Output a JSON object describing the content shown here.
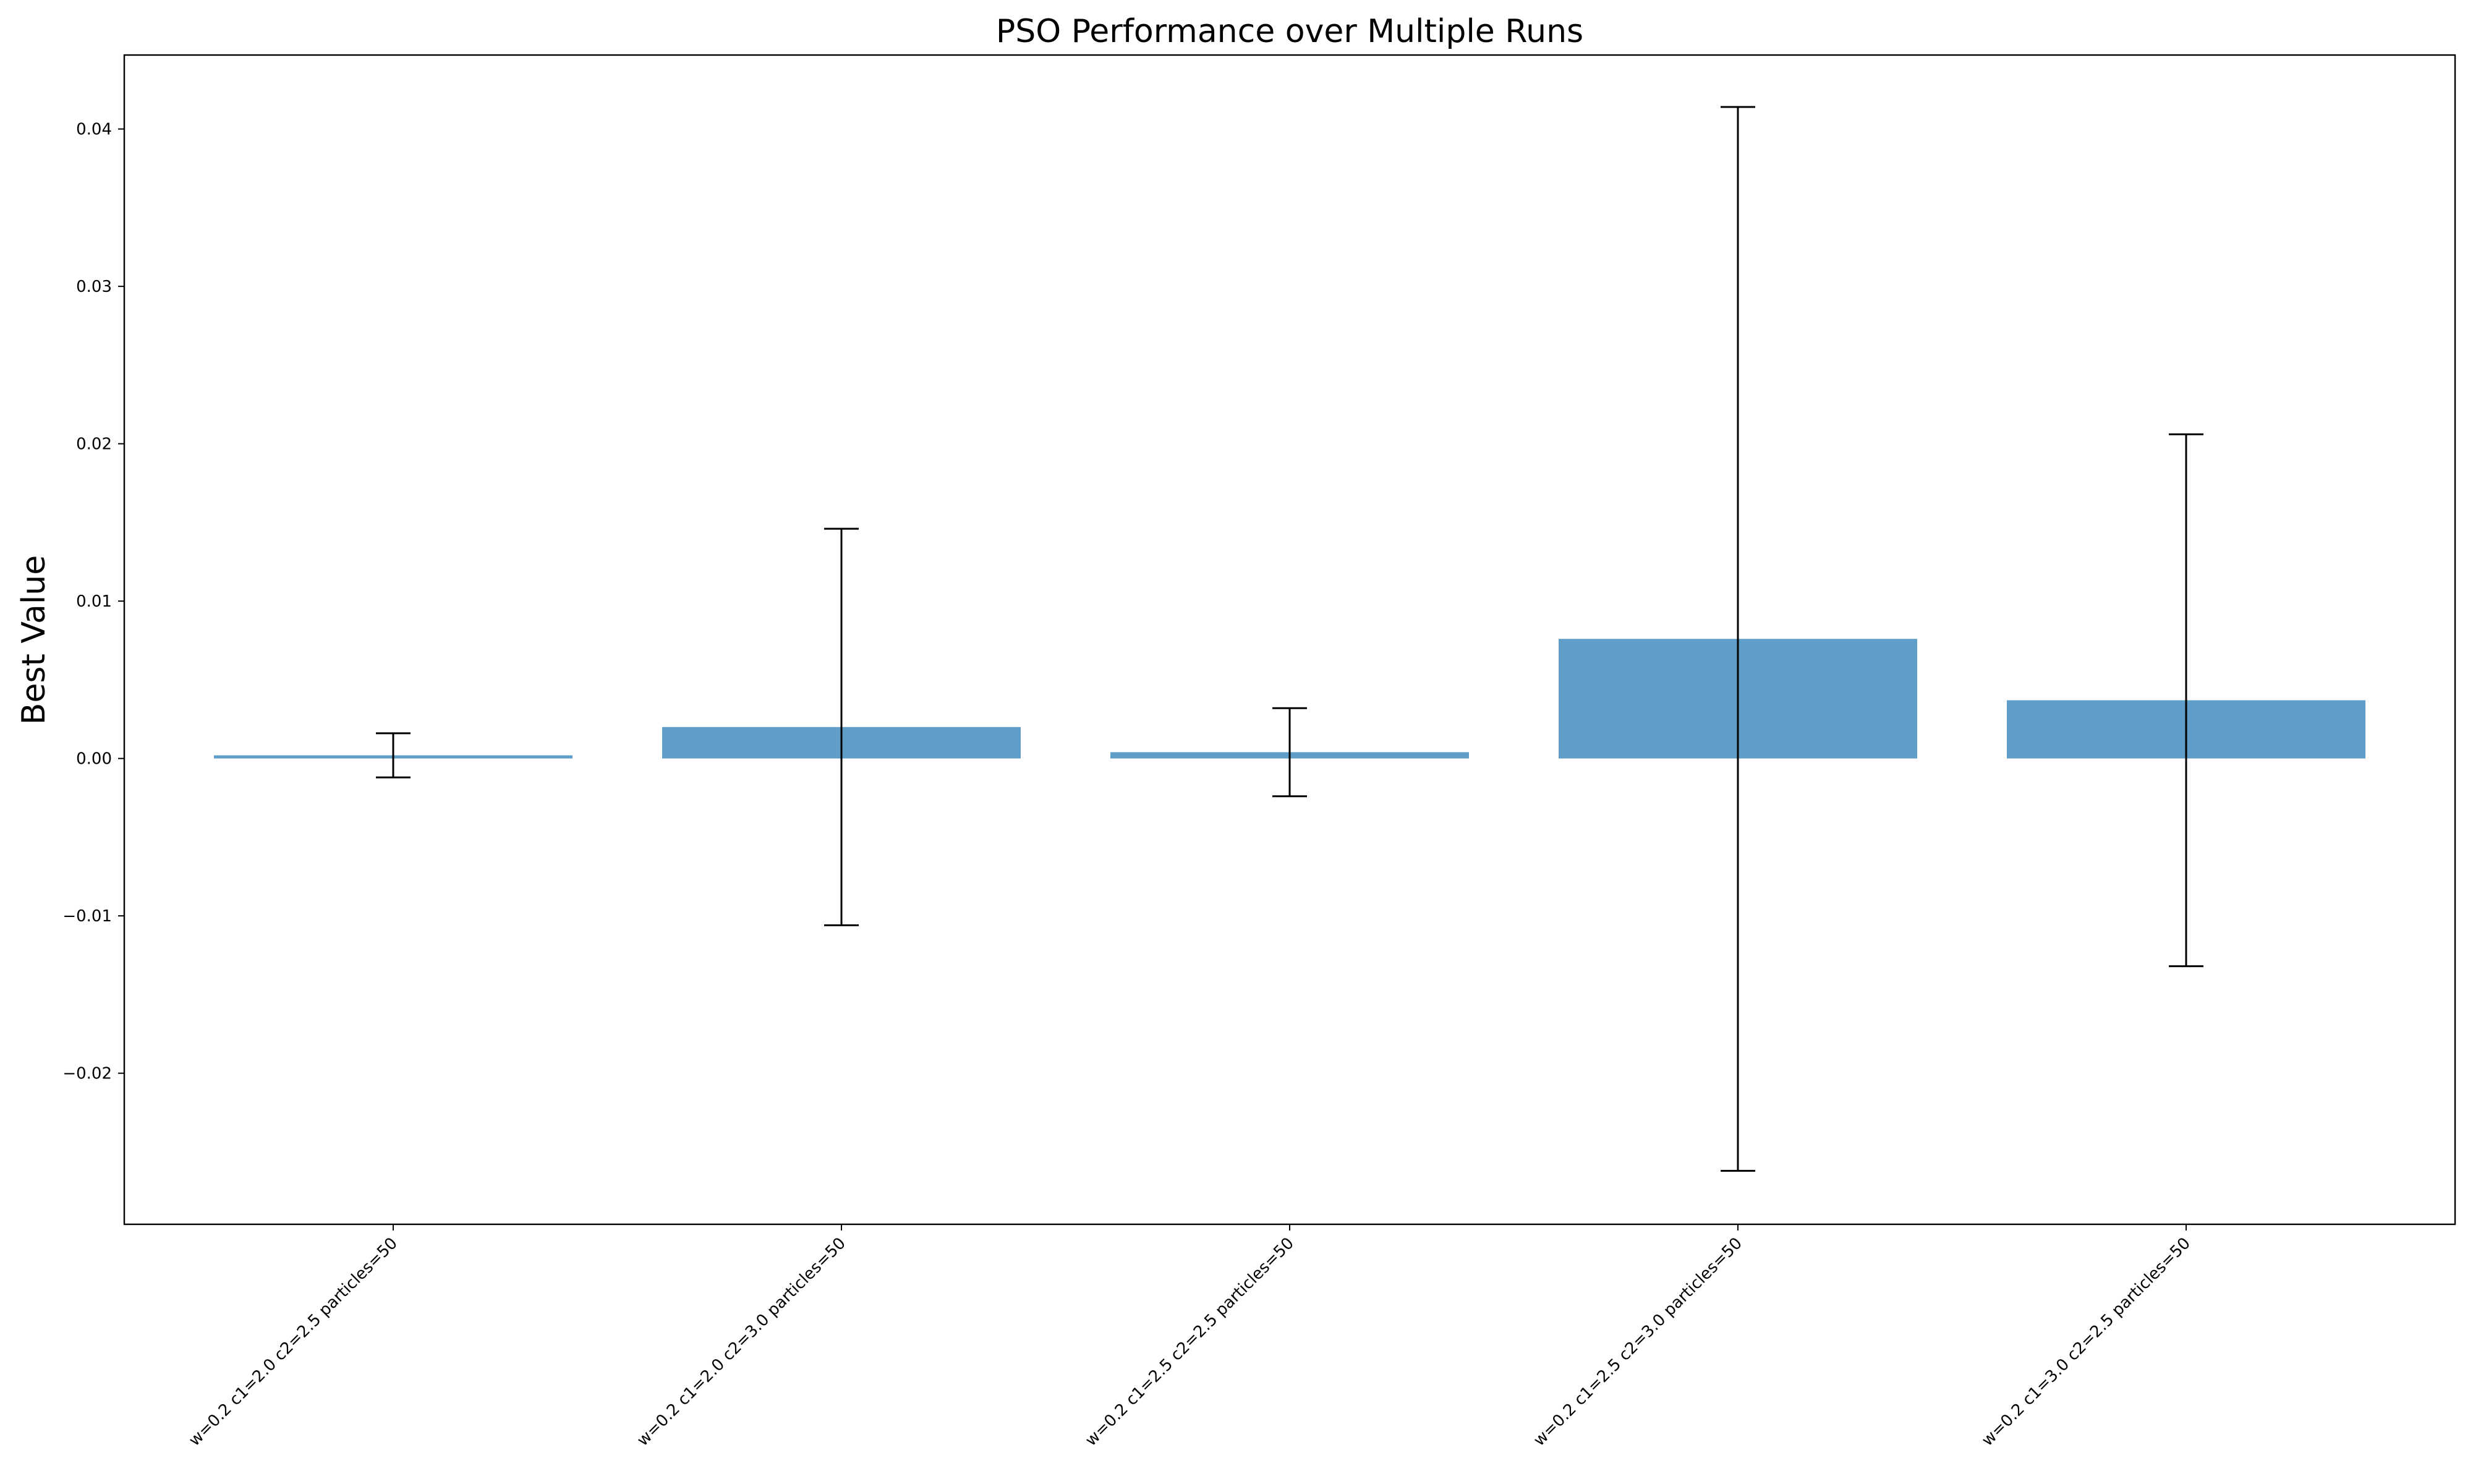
{
  "chart_data": {
    "type": "bar",
    "title": "PSO Performance over Multiple Runs",
    "xlabel": "",
    "ylabel": "Best Value",
    "categories": [
      "w=0.2 c1=2.0 c2=2.5 particles=50",
      "w=0.2 c1=2.0 c2=3.0 particles=50",
      "w=0.2 c1=2.5 c2=2.5 particles=50",
      "w=0.2 c1=2.5 c2=3.0 particles=50",
      "w=0.2 c1=3.0 c2=2.5 particles=50"
    ],
    "values": [
      0.0002,
      0.002,
      0.0004,
      0.0076,
      0.0037
    ],
    "errors": [
      0.0014,
      0.0126,
      0.0028,
      0.0338,
      0.0169
    ],
    "ylim": [
      -0.0296,
      0.0447
    ],
    "yticks": [
      -0.02,
      -0.01,
      0.0,
      0.01,
      0.02,
      0.03,
      0.04
    ],
    "ytick_labels": [
      "−0.02",
      "−0.01",
      "0.00",
      "0.01",
      "0.02",
      "0.03",
      "0.04"
    ],
    "grid": false,
    "bar_color": "#5f9ec9",
    "error_color": "#000000"
  }
}
